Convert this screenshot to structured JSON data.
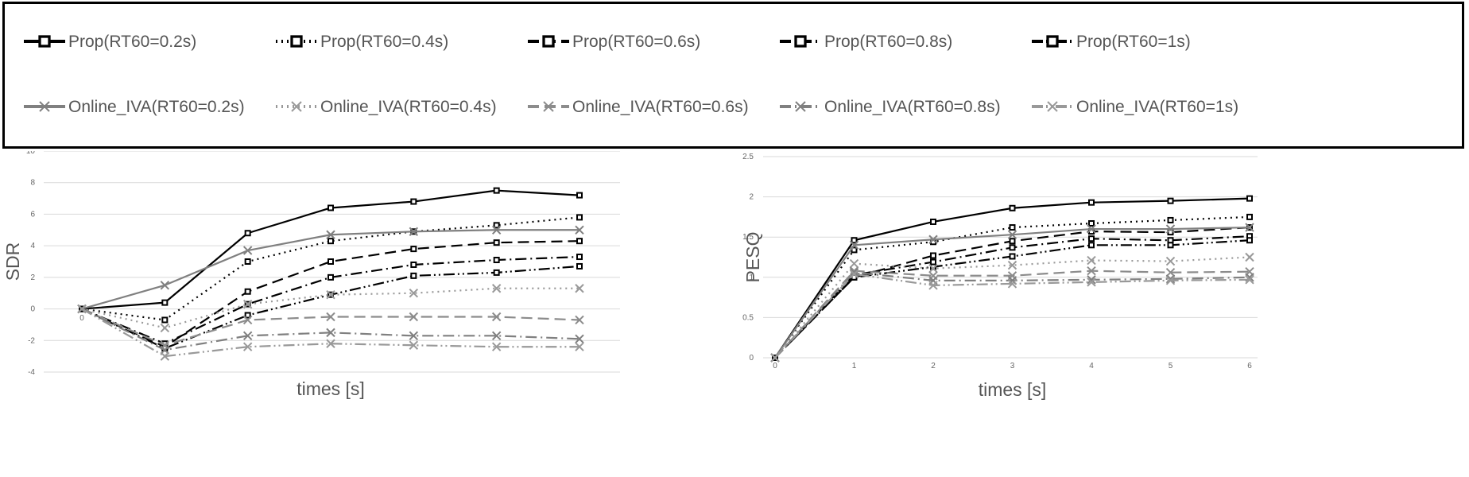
{
  "legend": {
    "entries": [
      {
        "label": "Prop(RT60=0.2s)",
        "color": "#000000",
        "dash": "solid",
        "marker": "square"
      },
      {
        "label": "Prop(RT60=0.4s)",
        "color": "#000000",
        "dash": "dot",
        "marker": "square"
      },
      {
        "label": "Prop(RT60=0.6s)",
        "color": "#000000",
        "dash": "dash",
        "marker": "square"
      },
      {
        "label": "Prop(RT60=0.8s)",
        "color": "#000000",
        "dash": "dashdot",
        "marker": "square"
      },
      {
        "label": "Prop(RT60=1s)",
        "color": "#000000",
        "dash": "dashdotdot",
        "marker": "square"
      },
      {
        "label": "Online_IVA(RT60=0.2s)",
        "color": "#808080",
        "dash": "solid",
        "marker": "x"
      },
      {
        "label": "Online_IVA(RT60=0.4s)",
        "color": "#999999",
        "dash": "dot",
        "marker": "x"
      },
      {
        "label": "Online_IVA(RT60=0.6s)",
        "color": "#8c8c8c",
        "dash": "dash",
        "marker": "x"
      },
      {
        "label": "Online_IVA(RT60=0.8s)",
        "color": "#808080",
        "dash": "dashdot",
        "marker": "x"
      },
      {
        "label": "Online_IVA(RT60=1s)",
        "color": "#999999",
        "dash": "dashdotdot",
        "marker": "x"
      }
    ]
  },
  "chart_data": [
    {
      "type": "line",
      "title": "",
      "xlabel": "times [s]",
      "ylabel": "SDR",
      "x": [
        0,
        1,
        2,
        3,
        4,
        5,
        6
      ],
      "x_tick_labels": [
        "0"
      ],
      "ylim": [
        -4,
        10
      ],
      "yticks": [
        -4,
        -2,
        0,
        2,
        4,
        6,
        8,
        10
      ],
      "grid": true,
      "series": [
        {
          "name": "Prop(RT60=0.2s)",
          "values": [
            0,
            0.4,
            4.8,
            6.4,
            6.8,
            7.5,
            7.2
          ]
        },
        {
          "name": "Prop(RT60=0.4s)",
          "values": [
            0,
            -0.7,
            3.0,
            4.3,
            4.9,
            5.3,
            5.8
          ]
        },
        {
          "name": "Prop(RT60=0.6s)",
          "values": [
            0,
            -2.4,
            1.1,
            3.0,
            3.8,
            4.2,
            4.3
          ]
        },
        {
          "name": "Prop(RT60=0.8s)",
          "values": [
            0,
            -2.2,
            0.3,
            2.0,
            2.8,
            3.1,
            3.3
          ]
        },
        {
          "name": "Prop(RT60=1s)",
          "values": [
            0,
            -2.5,
            -0.4,
            0.9,
            2.1,
            2.3,
            2.7
          ]
        },
        {
          "name": "Online_IVA(RT60=0.2s)",
          "values": [
            0,
            1.5,
            3.7,
            4.7,
            4.9,
            5.0,
            5.0
          ]
        },
        {
          "name": "Online_IVA(RT60=0.4s)",
          "values": [
            0,
            -1.2,
            0.3,
            0.9,
            1.0,
            1.3,
            1.3
          ]
        },
        {
          "name": "Online_IVA(RT60=0.6s)",
          "values": [
            0,
            -2.3,
            -0.7,
            -0.5,
            -0.5,
            -0.5,
            -0.7
          ]
        },
        {
          "name": "Online_IVA(RT60=0.8s)",
          "values": [
            0,
            -2.6,
            -1.7,
            -1.5,
            -1.7,
            -1.7,
            -1.9
          ]
        },
        {
          "name": "Online_IVA(RT60=1s)",
          "values": [
            0,
            -3.0,
            -2.4,
            -2.2,
            -2.3,
            -2.4,
            -2.4
          ]
        }
      ]
    },
    {
      "type": "line",
      "title": "",
      "xlabel": "times [s]",
      "ylabel": "PESQ",
      "x": [
        0,
        1,
        2,
        3,
        4,
        5,
        6
      ],
      "x_tick_labels": [
        "0",
        "1",
        "2",
        "3",
        "4",
        "5",
        "6"
      ],
      "ylim": [
        0,
        2.5
      ],
      "yticks": [
        0,
        0.5,
        1,
        1.5,
        2,
        2.5
      ],
      "grid": true,
      "series": [
        {
          "name": "Prop(RT60=0.2s)",
          "values": [
            0,
            1.46,
            1.69,
            1.86,
            1.93,
            1.95,
            1.98
          ]
        },
        {
          "name": "Prop(RT60=0.4s)",
          "values": [
            0,
            1.34,
            1.44,
            1.62,
            1.67,
            1.71,
            1.75
          ]
        },
        {
          "name": "Prop(RT60=0.6s)",
          "values": [
            0,
            1.0,
            1.27,
            1.45,
            1.57,
            1.56,
            1.62
          ]
        },
        {
          "name": "Prop(RT60=0.8s)",
          "values": [
            0,
            1.03,
            1.19,
            1.37,
            1.48,
            1.46,
            1.51
          ]
        },
        {
          "name": "Prop(RT60=1s)",
          "values": [
            0,
            1.0,
            1.13,
            1.26,
            1.4,
            1.4,
            1.46
          ]
        },
        {
          "name": "Online_IVA(RT60=0.2s)",
          "values": [
            0,
            1.4,
            1.47,
            1.53,
            1.6,
            1.6,
            1.62
          ]
        },
        {
          "name": "Online_IVA(RT60=0.4s)",
          "values": [
            0,
            1.17,
            1.11,
            1.15,
            1.21,
            1.2,
            1.25
          ]
        },
        {
          "name": "Online_IVA(RT60=0.6s)",
          "values": [
            0,
            1.08,
            1.02,
            1.02,
            1.08,
            1.06,
            1.07
          ]
        },
        {
          "name": "Online_IVA(RT60=0.8s)",
          "values": [
            0,
            1.06,
            0.96,
            0.96,
            0.97,
            0.98,
            1.0
          ]
        },
        {
          "name": "Online_IVA(RT60=1s)",
          "values": [
            0,
            1.04,
            0.9,
            0.92,
            0.94,
            0.96,
            0.97
          ]
        }
      ]
    }
  ]
}
